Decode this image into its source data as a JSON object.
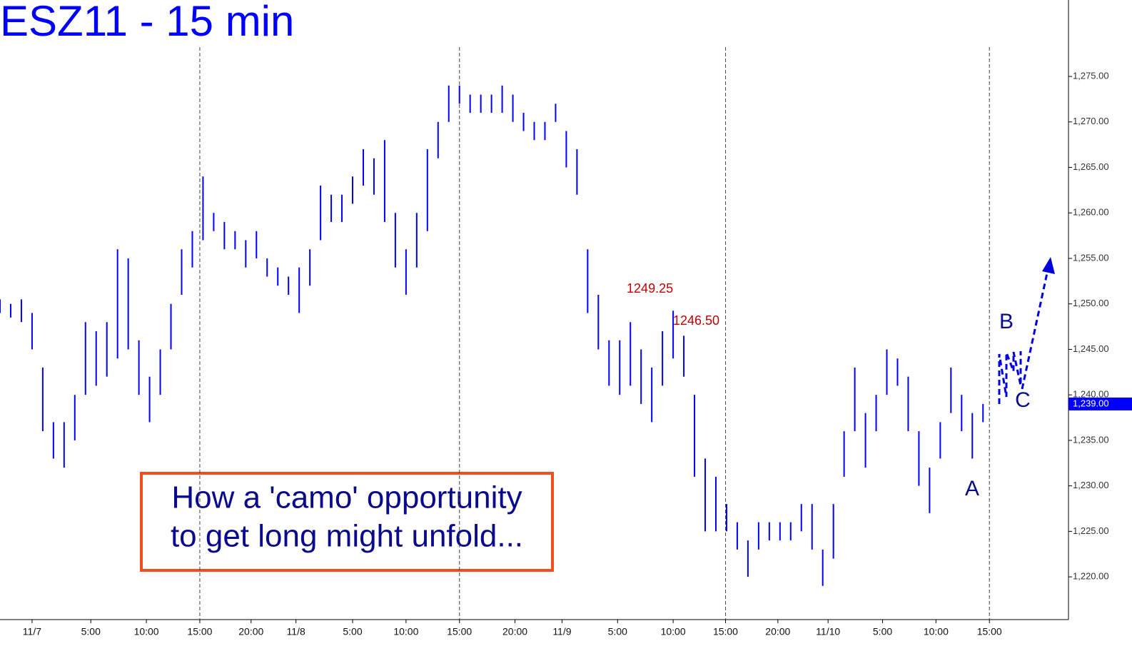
{
  "chart_data": {
    "type": "ohlc",
    "title": "ESZ11 - 15 min",
    "x": [
      0,
      1,
      2,
      3,
      4,
      5,
      6,
      7,
      8,
      9,
      10,
      11,
      12,
      13,
      14,
      15,
      16,
      17,
      18,
      19,
      20,
      21,
      22,
      23,
      24,
      25,
      26,
      27,
      28,
      29,
      30,
      31,
      32,
      33,
      34,
      35,
      36,
      37,
      38,
      39,
      40,
      41,
      42,
      43,
      44,
      45,
      46,
      47,
      48,
      49,
      50,
      51,
      52,
      53,
      54,
      55,
      56,
      57,
      58,
      59,
      60,
      61,
      62,
      63,
      64,
      65,
      66,
      67,
      68,
      69,
      70,
      71,
      72,
      73,
      74,
      75,
      76,
      77,
      78,
      79,
      80,
      81,
      82,
      83,
      84,
      85,
      86,
      87,
      88,
      89,
      90,
      91,
      92
    ],
    "high": [
      1250.5,
      1250,
      1250.5,
      1249,
      1243,
      1237,
      1237,
      1240,
      1248,
      1247,
      1248,
      1256,
      1255,
      1246,
      1242,
      1245,
      1250,
      1256,
      1258,
      1264,
      1260,
      1259,
      1258,
      1257,
      1258,
      1255,
      1254,
      1253,
      1254,
      1256,
      1263,
      1262,
      1262,
      1264,
      1267,
      1266,
      1268,
      1260,
      1256,
      1260,
      1267,
      1270,
      1274,
      1274,
      1273,
      1273,
      1273,
      1274,
      1273,
      1271,
      1270,
      1270,
      1272,
      1269,
      1267,
      1256,
      1251,
      1246,
      1246,
      1248,
      1245,
      1243,
      1247,
      1249.25,
      1246.5,
      1240,
      1233,
      1231,
      1228,
      1226,
      1224,
      1226,
      1226,
      1226,
      1226,
      1228,
      1228,
      1223,
      1228,
      1236,
      1243,
      1238,
      1240,
      1245,
      1244,
      1242,
      1236,
      1232,
      1237,
      1243,
      1240,
      1238,
      1239
    ],
    "low": [
      1249,
      1248.5,
      1248,
      1245,
      1236,
      1233,
      1232,
      1235,
      1240,
      1241,
      1242,
      1244,
      1245,
      1240,
      1237,
      1240,
      1245,
      1251,
      1254,
      1257,
      1258,
      1256,
      1256,
      1254,
      1255,
      1253,
      1252,
      1251,
      1249,
      1252,
      1257,
      1259,
      1259,
      1261,
      1263,
      1262,
      1259,
      1254,
      1251,
      1254,
      1258,
      1266,
      1270,
      1272,
      1271,
      1271,
      1271,
      1271,
      1270,
      1269,
      1268,
      1268,
      1270,
      1265,
      1262,
      1249,
      1245,
      1241,
      1240,
      1241,
      1239,
      1237,
      1241,
      1244,
      1242,
      1231,
      1225,
      1225,
      1225,
      1223,
      1220,
      1223,
      1224,
      1224,
      1224,
      1225,
      1223,
      1219,
      1222,
      1231,
      1236,
      1232,
      1236,
      1240,
      1241,
      1236,
      1230,
      1227,
      1233,
      1238,
      1236,
      1233,
      1237
    ],
    "color": "#0000ff",
    "xlim": [
      0,
      100
    ],
    "xticks": [
      {
        "value": 3,
        "label": "11/7"
      },
      {
        "value": 8.5,
        "label": "5:00"
      },
      {
        "value": 13.7,
        "label": "10:00"
      },
      {
        "value": 18.7,
        "label": "15:00"
      },
      {
        "value": 23.5,
        "label": "20:00"
      },
      {
        "value": 27.7,
        "label": "11/8"
      },
      {
        "value": 33,
        "label": "5:00"
      },
      {
        "value": 38,
        "label": "10:00"
      },
      {
        "value": 43,
        "label": "15:00"
      },
      {
        "value": 48.2,
        "label": "20:00"
      },
      {
        "value": 52.6,
        "label": "11/9"
      },
      {
        "value": 57.8,
        "label": "5:00"
      },
      {
        "value": 63,
        "label": "10:00"
      },
      {
        "value": 67.9,
        "label": "15:00"
      },
      {
        "value": 72.8,
        "label": "20:00"
      },
      {
        "value": 77.5,
        "label": "11/10"
      },
      {
        "value": 82.6,
        "label": "5:00"
      },
      {
        "value": 87.6,
        "label": "10:00"
      },
      {
        "value": 92.6,
        "label": "15:00"
      }
    ],
    "session_lines": [
      18.7,
      43,
      67.9,
      92.6
    ],
    "ylim": [
      1215.3,
      1283.4
    ],
    "yticks": [
      {
        "value": 1220,
        "label": "1,220.00"
      },
      {
        "value": 1225,
        "label": "1,225.00"
      },
      {
        "value": 1230,
        "label": "1,230.00"
      },
      {
        "value": 1235,
        "label": "1,235.00"
      },
      {
        "value": 1240,
        "label": "1,240.00"
      },
      {
        "value": 1245,
        "label": "1,245.00"
      },
      {
        "value": 1250,
        "label": "1,250.00"
      },
      {
        "value": 1255,
        "label": "1,255.00"
      },
      {
        "value": 1260,
        "label": "1,260.00"
      },
      {
        "value": 1265,
        "label": "1,265.00"
      },
      {
        "value": 1270,
        "label": "1,270.00"
      },
      {
        "value": 1275,
        "label": "1,275.00"
      }
    ],
    "last_price": {
      "value": 1239,
      "label": "1,239.00"
    },
    "price_labels": [
      {
        "x": 63,
        "value": 1249.25,
        "label": "1249.25"
      },
      {
        "x": 64,
        "value": 1246.5,
        "label": "1246.50"
      }
    ],
    "wave_labels": [
      "A",
      "B",
      "C"
    ],
    "note": [
      "How a 'camo' opportunity",
      "to get long might unfold..."
    ]
  }
}
